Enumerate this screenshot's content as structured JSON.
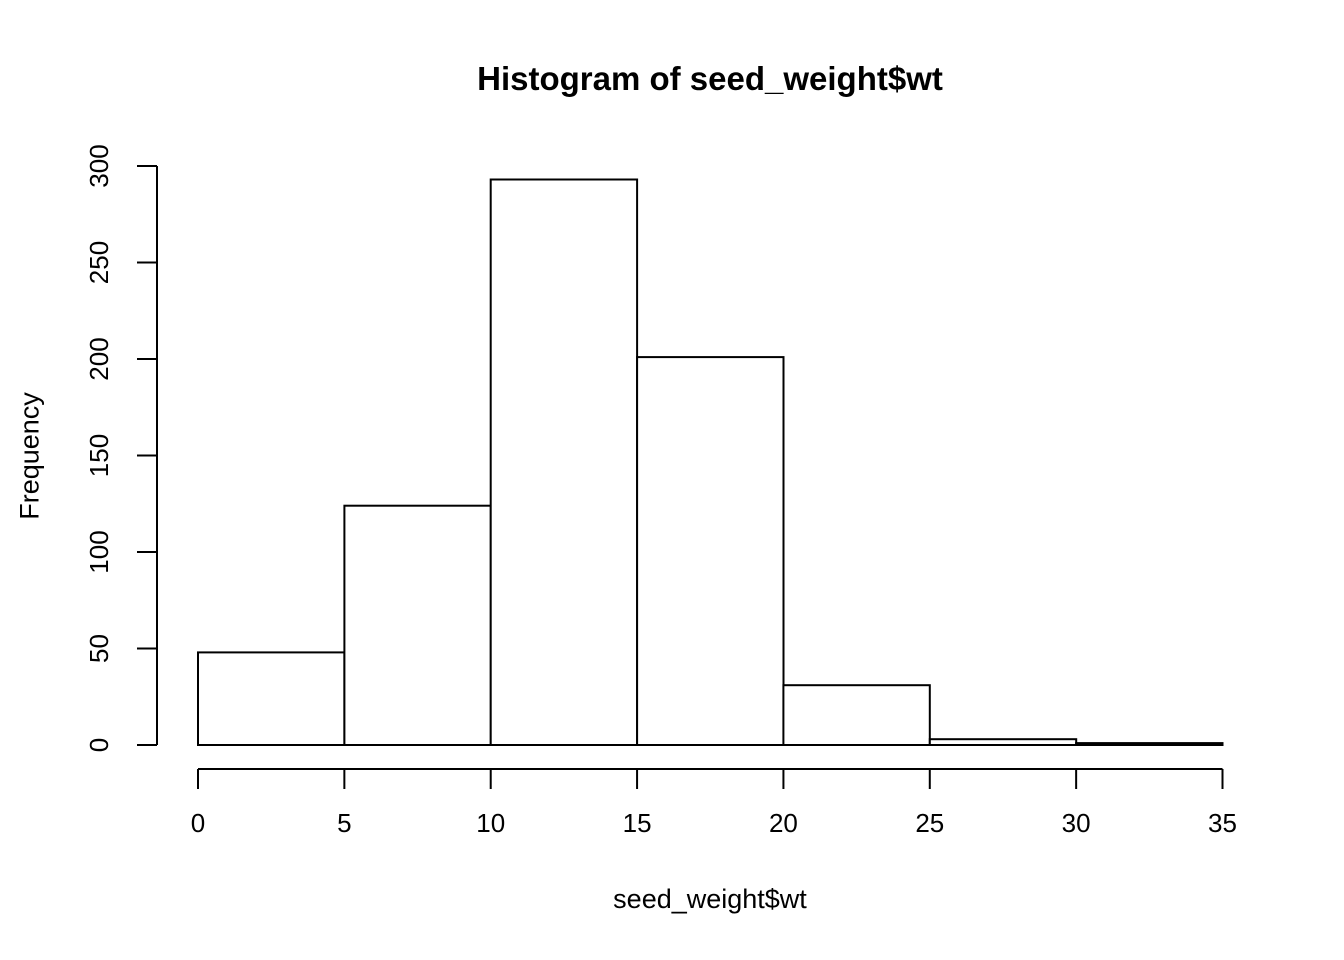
{
  "chart_data": {
    "type": "bar",
    "subtype": "histogram",
    "title": "Histogram of seed_weight$wt",
    "xlabel": "seed_weight$wt",
    "ylabel": "Frequency",
    "bin_edges": [
      0,
      5,
      10,
      15,
      20,
      25,
      30,
      35
    ],
    "categories": [
      "0-5",
      "5-10",
      "10-15",
      "15-20",
      "20-25",
      "25-30",
      "30-35"
    ],
    "values": [
      48,
      124,
      293,
      201,
      31,
      3,
      1
    ],
    "x_ticks": [
      0,
      5,
      10,
      15,
      20,
      25,
      30,
      35
    ],
    "y_ticks": [
      0,
      50,
      100,
      150,
      200,
      250,
      300
    ],
    "xlim": [
      0,
      35
    ],
    "ylim": [
      0,
      300
    ],
    "grid": false,
    "legend_position": "none",
    "colors": {
      "background": "#ffffff",
      "bar_fill": "#ffffff",
      "stroke": "#000000",
      "text": "#000000"
    }
  }
}
